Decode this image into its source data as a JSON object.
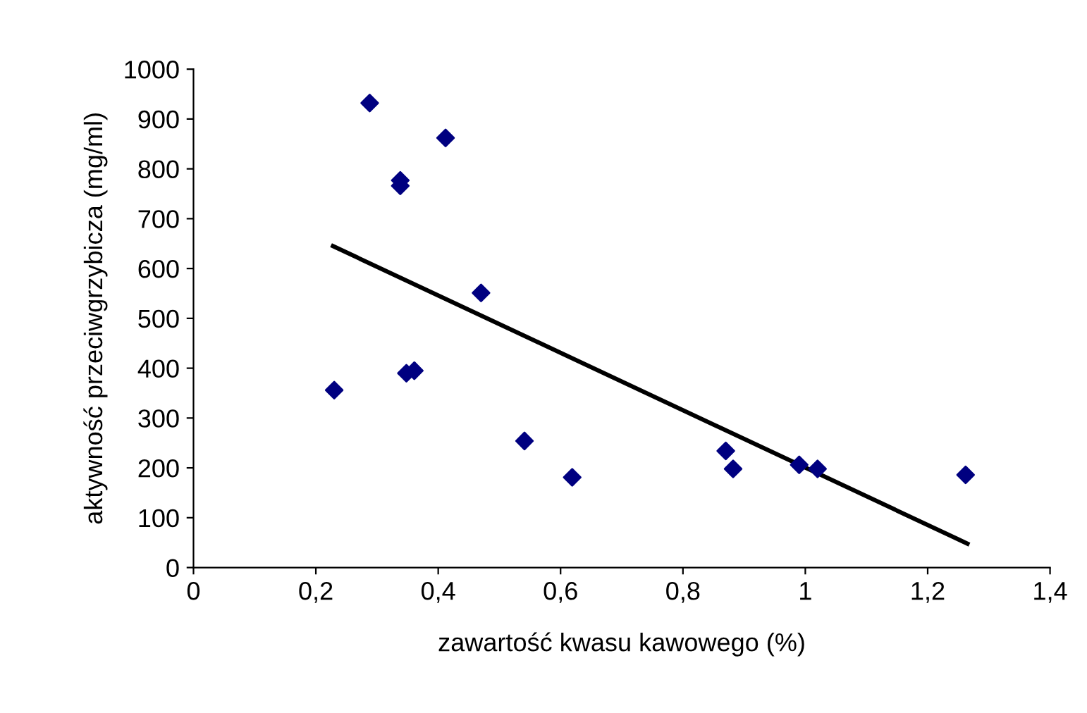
{
  "chart_data": {
    "type": "scatter",
    "xlabel": "zawartość kwasu kawowego (%)",
    "ylabel": "aktywność przeciwgrzybicza (mg/ml)",
    "series": [
      {
        "color": "#000080",
        "marker": "diamond",
        "x": [
          0.23,
          0.288,
          0.338,
          0.338,
          0.412,
          0.348,
          0.361,
          0.47,
          0.541,
          0.619,
          0.87,
          0.882,
          0.99,
          1.02,
          1.262
        ],
        "values": [
          356,
          932,
          777,
          766,
          862,
          390,
          395,
          551,
          254,
          181,
          234,
          198,
          206,
          198,
          186
        ]
      },
      {
        "type": "line",
        "color": "#000000",
        "marker": "none",
        "x": [
          0.228,
          1.265
        ],
        "values": [
          645,
          48
        ]
      }
    ],
    "xlim": [
      0,
      1.4
    ],
    "xticks": [
      0,
      {
        "value": 0.2,
        "label": "0,2"
      },
      {
        "value": 0.4,
        "label": "0,4"
      },
      {
        "value": 0.6,
        "label": "0,6"
      },
      {
        "value": 0.8,
        "label": "0,8"
      },
      1,
      {
        "value": 1.2,
        "label": "1,2"
      },
      {
        "value": 1.4,
        "label": "1,4"
      }
    ],
    "ylim": [
      0,
      1000
    ],
    "yticks": [
      0,
      100,
      200,
      300,
      400,
      500,
      600,
      700,
      800,
      900,
      1000
    ],
    "grid": false,
    "legend": false
  }
}
